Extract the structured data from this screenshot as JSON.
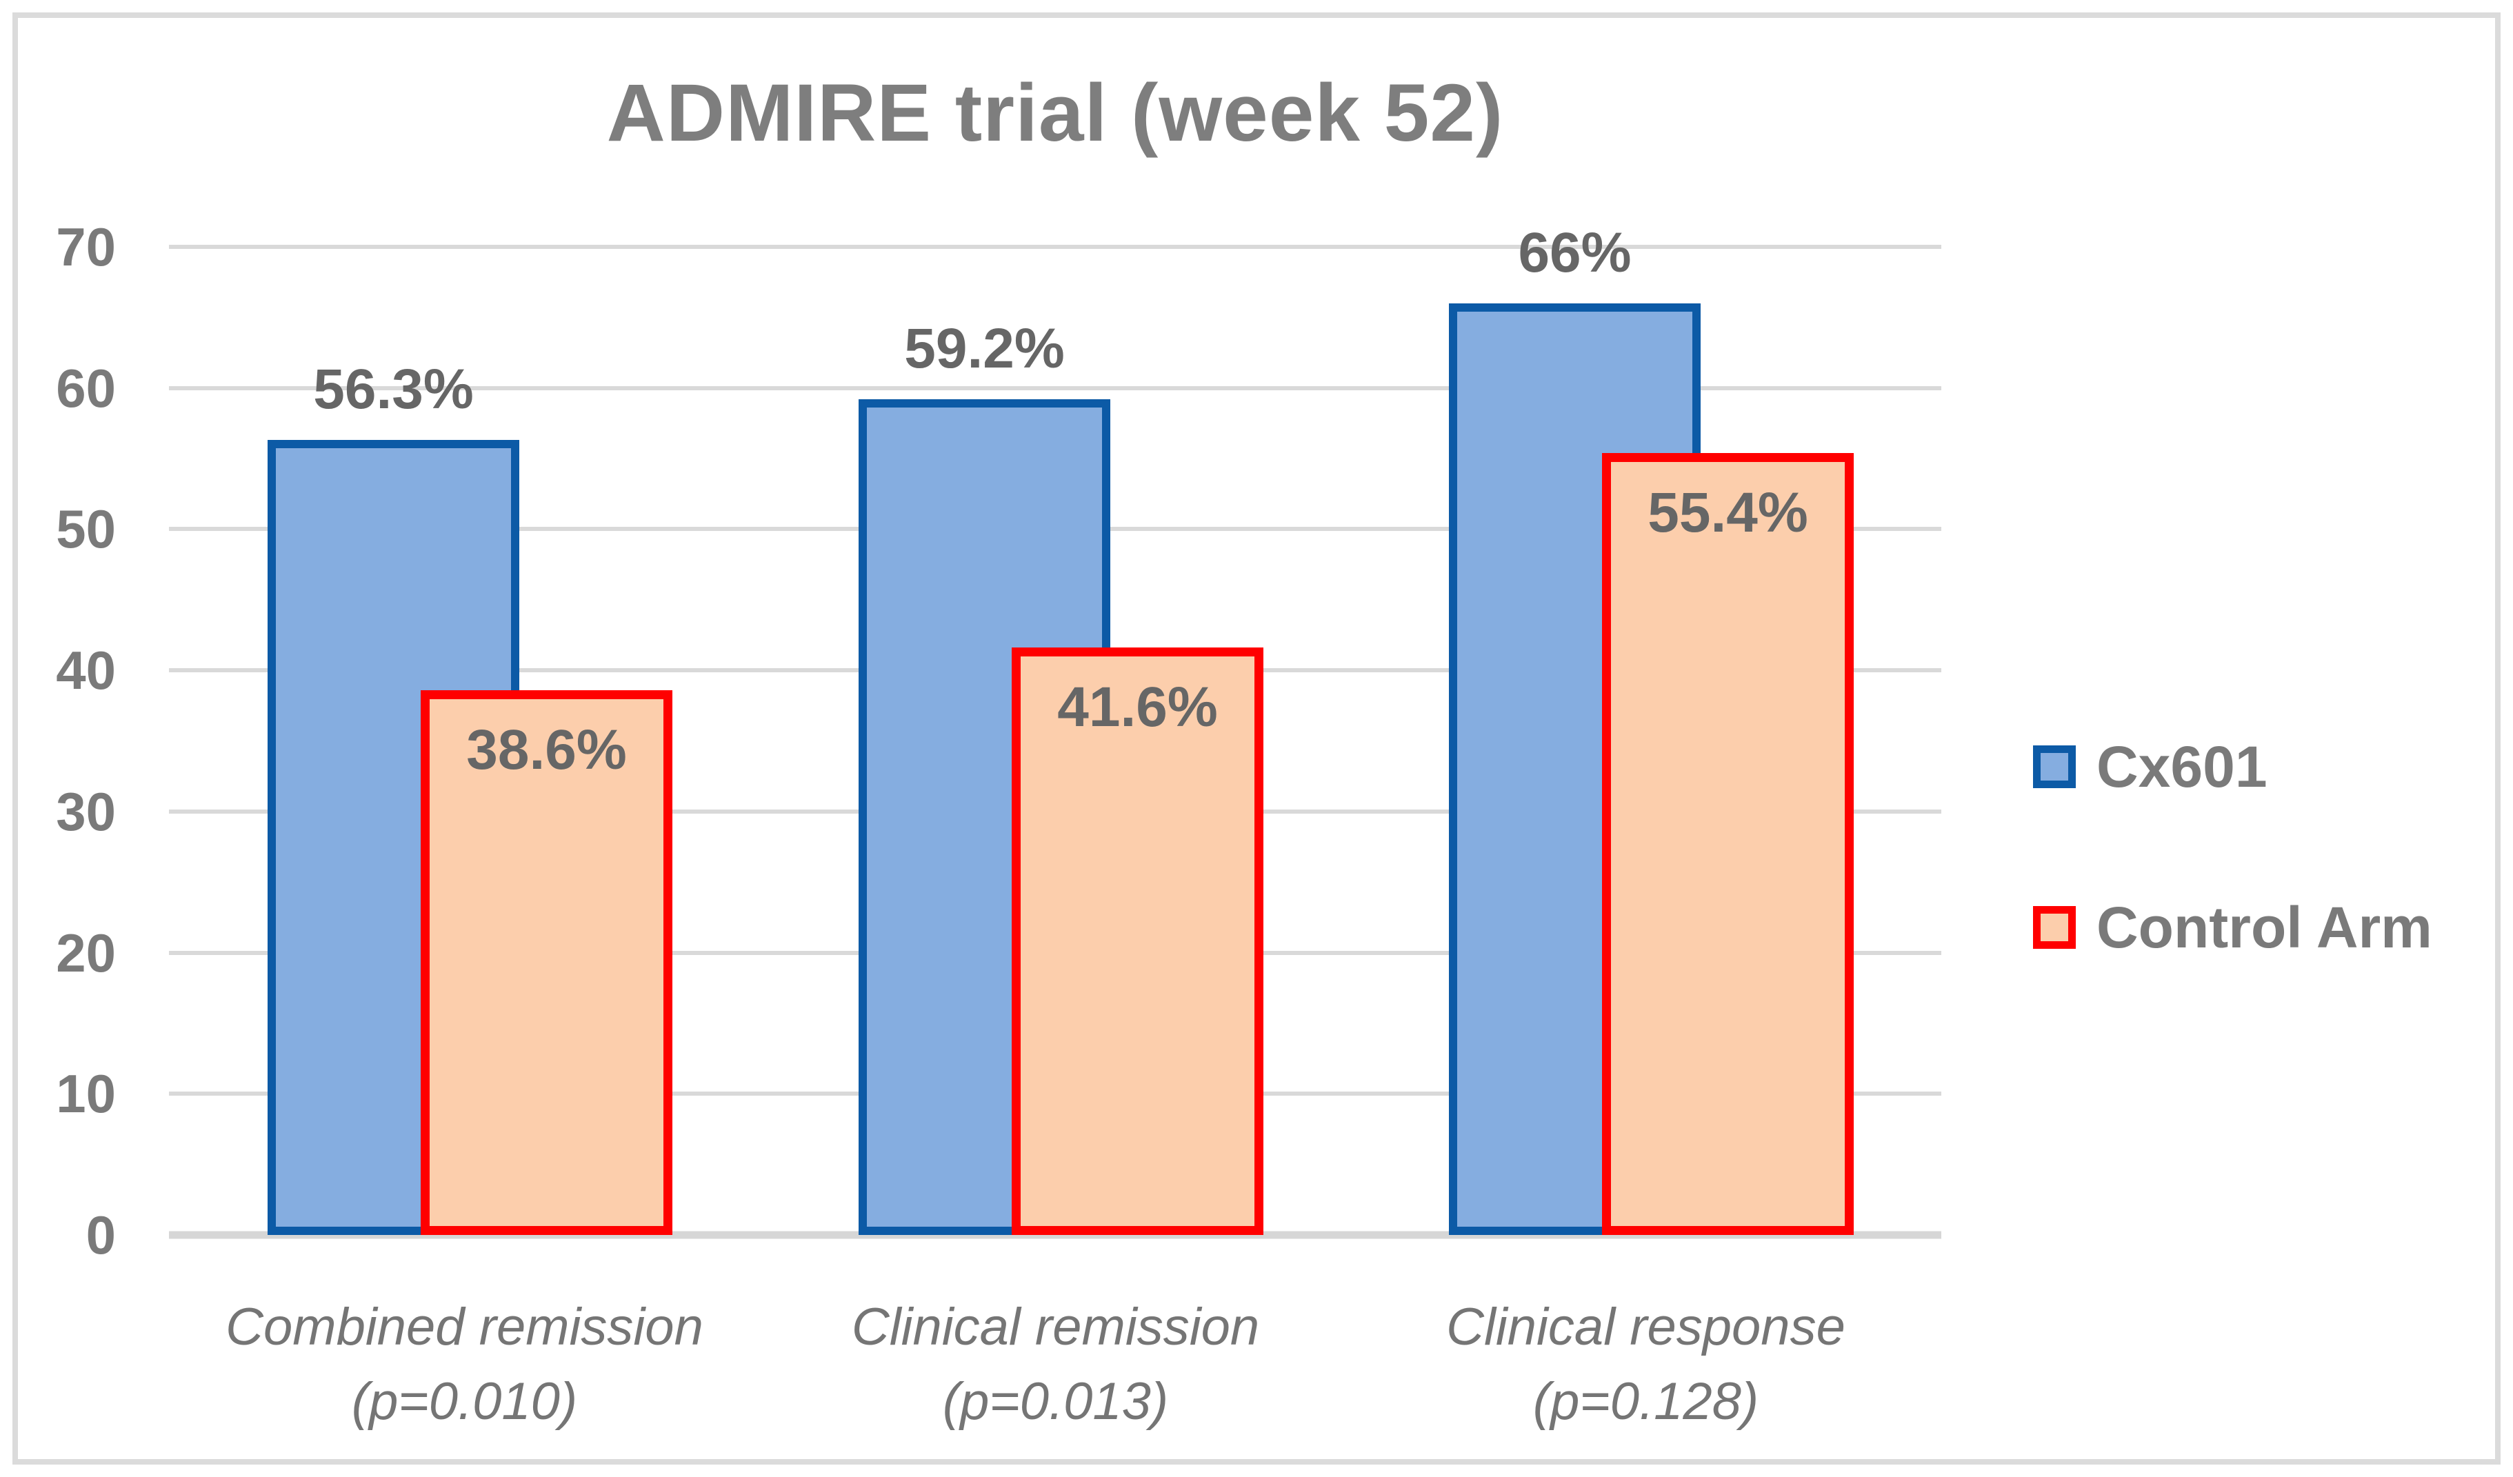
{
  "window": {
    "background": "#FFFFFF",
    "frame_border_color": "#DBDBDB"
  },
  "chart_data": {
    "type": "bar",
    "title": "ADMIRE trial (week 52)",
    "categories": [
      {
        "label": "Combined remission",
        "sublabel": "(p=0.010)"
      },
      {
        "label": "Clinical remission",
        "sublabel": "(p=0.013)"
      },
      {
        "label": "Clinical response",
        "sublabel": "(p=0.128)"
      }
    ],
    "series": [
      {
        "name": "Cx601",
        "values": [
          56.3,
          59.2,
          66
        ],
        "data_labels": [
          "56.3%",
          "59.2%",
          "66%"
        ],
        "fill": "#85ADE0",
        "border": "#0C5AA6",
        "label_position": "above"
      },
      {
        "name": "Control Arm",
        "values": [
          38.6,
          41.6,
          55.4
        ],
        "data_labels": [
          "38.6%",
          "41.6%",
          "55.4%"
        ],
        "fill": "#FCCEAC",
        "border": "#FF0000",
        "label_position": "inside-top"
      }
    ],
    "xlabel": "",
    "ylabel": "",
    "ylim": [
      0,
      70
    ],
    "yticks": [
      0,
      10,
      20,
      30,
      40,
      50,
      60,
      70
    ],
    "grid": true,
    "legend_position": "right",
    "bar_style": "overlapped",
    "gridline_color": "#D9D9D9",
    "text_colors": {
      "title": "#7E7E7E",
      "ticks": "#7A7A7A",
      "data_labels": "#666666",
      "categories": "#757575",
      "legend": "#7A7A7A"
    }
  }
}
